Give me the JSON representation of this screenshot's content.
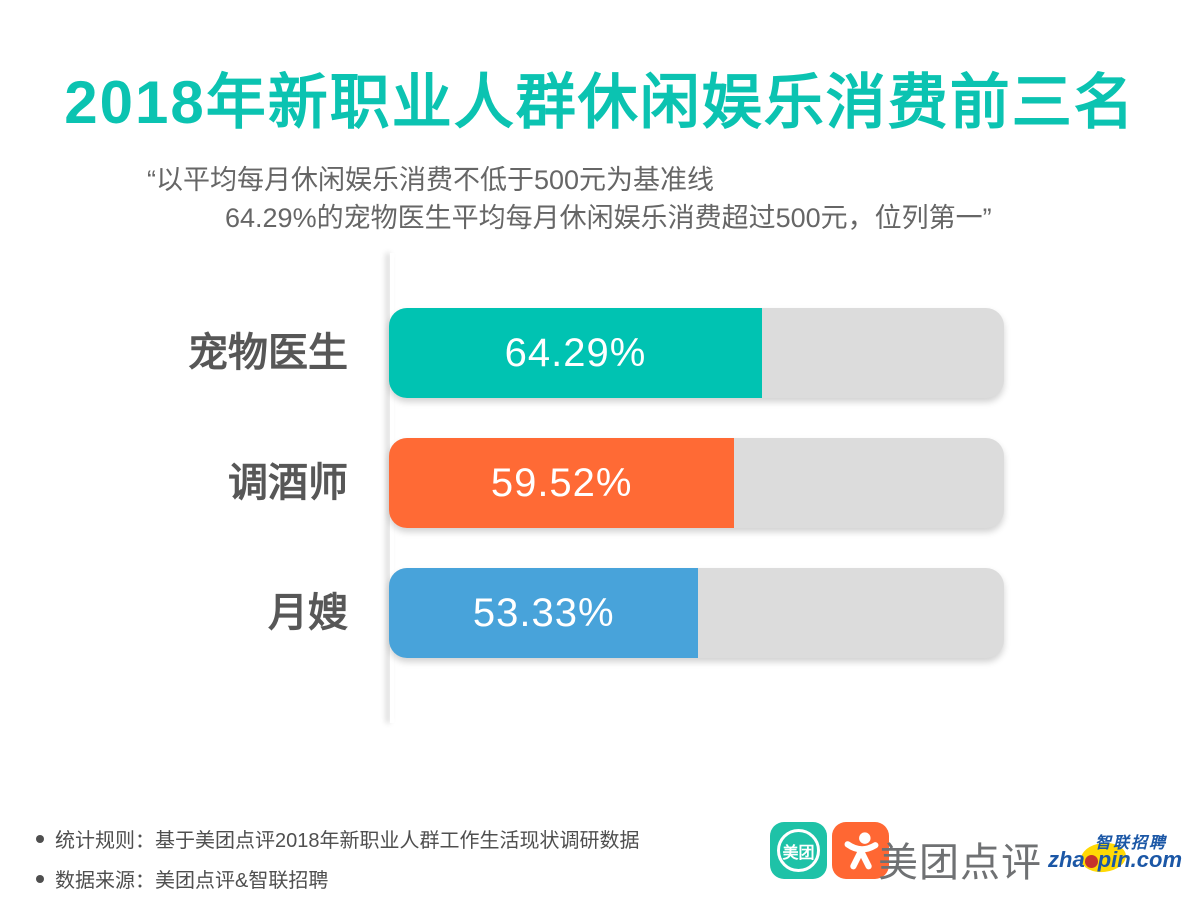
{
  "title": "2018年新职业人群休闲娱乐消费前三名",
  "subtitle": {
    "line1": "“以平均每月休闲娱乐消费不低于500元为基准线",
    "line2": "64.29%的宠物医生平均每月休闲娱乐消费超过500元，位列第一”"
  },
  "chart_data": {
    "type": "bar",
    "orientation": "horizontal",
    "title": "2018年新职业人群休闲娱乐消费前三名",
    "categories": [
      "宠物医生",
      "调酒师",
      "月嫂"
    ],
    "values": [
      64.29,
      59.52,
      53.33
    ],
    "value_labels": [
      "64.29%",
      "59.52%",
      "53.33%"
    ],
    "unit": "%",
    "colors": [
      "#00c3b2",
      "#ff6a35",
      "#48a3da"
    ],
    "track_color": "#dcdcdc",
    "xlim": [
      0,
      106
    ],
    "grid": false,
    "legend": false
  },
  "footer": {
    "notes": [
      "统计规则：基于美团点评2018年新职业人群工作生活现状调研数据",
      "数据来源：美团点评&智联招聘"
    ],
    "logos": {
      "meituan_icon_text": "美团",
      "brand_text": "美团点评",
      "zhaopin_cn": "智联招聘",
      "zhaopin_en_left": "zha",
      "zhaopin_en_right": "pin.com"
    }
  },
  "colors": {
    "title_teal": "#0bc3b1",
    "bar_teal": "#00c3b2",
    "bar_orange": "#ff6a35",
    "bar_blue": "#48a3da",
    "track_gray": "#dcdcdc",
    "meituan_teal": "#1ec2a7",
    "dianping_orange": "#ff6733",
    "zhaopin_blue": "#1b57a6",
    "zhaopin_yellow": "#ffd905",
    "zhaopin_red": "#c5332b"
  }
}
